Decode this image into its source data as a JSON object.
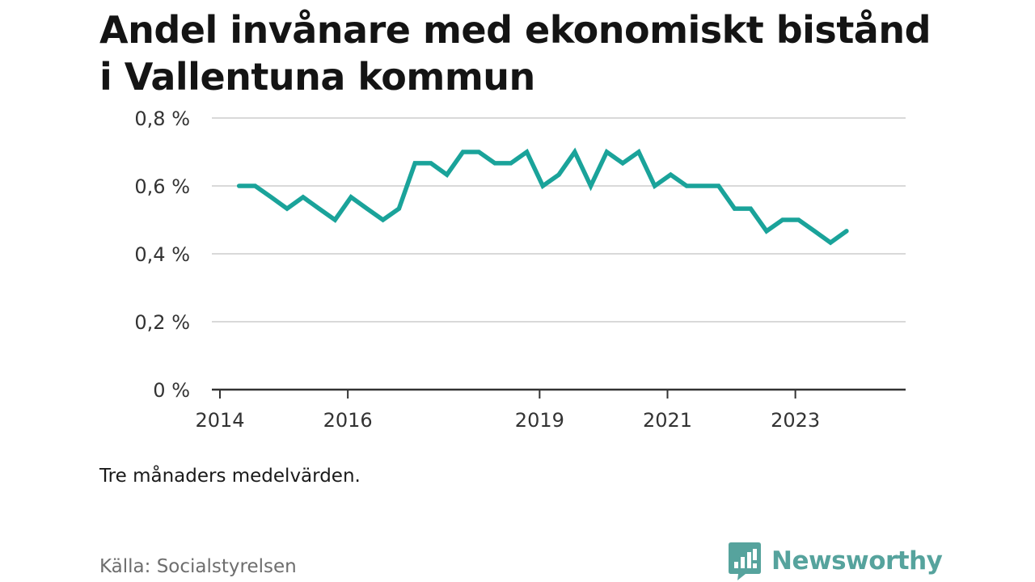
{
  "chart_data": {
    "type": "line",
    "title": "Andel invånare med ekonomiskt bistånd i Vallentuna kommun",
    "note": "Tre månaders medelvärden.",
    "source": "Källa: Socialstyrelsen",
    "xlabel": "",
    "ylabel": "",
    "ylim": [
      0,
      0.8
    ],
    "xlim": [
      2014,
      2024.75
    ],
    "y_ticks": [
      {
        "value": 0,
        "label": "0 %"
      },
      {
        "value": 0.2,
        "label": "0,2 %"
      },
      {
        "value": 0.4,
        "label": "0,4 %"
      },
      {
        "value": 0.6,
        "label": "0,6 %"
      },
      {
        "value": 0.8,
        "label": "0,8 %"
      }
    ],
    "x_ticks": [
      {
        "value": 2014,
        "label": "2014"
      },
      {
        "value": 2016,
        "label": "2016"
      },
      {
        "value": 2019,
        "label": "2019"
      },
      {
        "value": 2021,
        "label": "2021"
      },
      {
        "value": 2023,
        "label": "2023"
      }
    ],
    "grid": true,
    "series": [
      {
        "color": "#1aa39a",
        "points": [
          [
            2014.3,
            0.6
          ],
          [
            2014.55,
            0.6
          ],
          [
            2014.8,
            0.567
          ],
          [
            2015.05,
            0.533
          ],
          [
            2015.3,
            0.567
          ],
          [
            2015.55,
            0.533
          ],
          [
            2015.8,
            0.5
          ],
          [
            2016.05,
            0.567
          ],
          [
            2016.3,
            0.533
          ],
          [
            2016.55,
            0.5
          ],
          [
            2016.8,
            0.533
          ],
          [
            2017.05,
            0.667
          ],
          [
            2017.3,
            0.667
          ],
          [
            2017.55,
            0.633
          ],
          [
            2017.8,
            0.7
          ],
          [
            2018.05,
            0.7
          ],
          [
            2018.3,
            0.667
          ],
          [
            2018.55,
            0.667
          ],
          [
            2018.8,
            0.7
          ],
          [
            2019.05,
            0.6
          ],
          [
            2019.3,
            0.633
          ],
          [
            2019.55,
            0.7
          ],
          [
            2019.8,
            0.6
          ],
          [
            2020.05,
            0.7
          ],
          [
            2020.3,
            0.667
          ],
          [
            2020.55,
            0.7
          ],
          [
            2020.8,
            0.6
          ],
          [
            2021.05,
            0.633
          ],
          [
            2021.3,
            0.6
          ],
          [
            2021.55,
            0.6
          ],
          [
            2021.8,
            0.6
          ],
          [
            2022.05,
            0.533
          ],
          [
            2022.3,
            0.533
          ],
          [
            2022.55,
            0.467
          ],
          [
            2022.8,
            0.5
          ],
          [
            2023.05,
            0.5
          ],
          [
            2023.3,
            0.467
          ],
          [
            2023.55,
            0.433
          ],
          [
            2023.8,
            0.467
          ]
        ]
      }
    ]
  },
  "brand": {
    "name": "Newsworthy",
    "logo_icon": "bar-chart-speech-bubble-icon",
    "color": "#56a39d"
  }
}
